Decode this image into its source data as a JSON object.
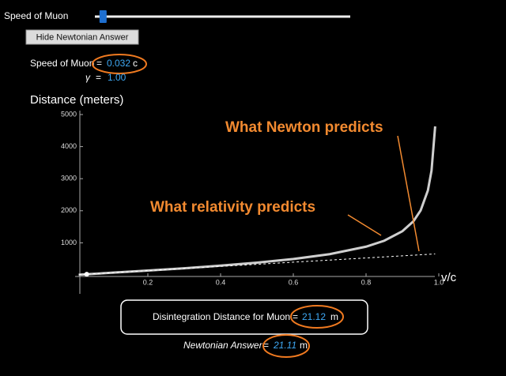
{
  "controls": {
    "slider_label": "Speed of Muon",
    "button": "Hide Newtonian Answer"
  },
  "speed_readout": {
    "label": "Speed of Muon",
    "equals": "=",
    "value": 0.032,
    "unit": "c"
  },
  "gamma_readout": {
    "symbol": "γ",
    "equals": "=",
    "value": {
      "value": 1,
      "label": "1.00"
    }
  },
  "relativistic_answer": {
    "label": "Disintegration Distance for Muon",
    "equals": "=",
    "value": 21.12,
    "unit": "m"
  },
  "newtonian_answer": {
    "label": "Newtonian Answer",
    "equals": "=",
    "value": 21.11,
    "unit": "m"
  },
  "chart_data": {
    "type": "line",
    "y_label": "Distance (meters)",
    "x_label": "v/c",
    "annotations": [
      "What Newton predicts",
      "What relativity predicts"
    ],
    "x": [
      0.01,
      0.1,
      0.2,
      0.3,
      0.4,
      0.5,
      0.6,
      0.7,
      0.8,
      0.85,
      0.9,
      0.93,
      0.95,
      0.97,
      0.98,
      0.99
    ],
    "series": [
      {
        "name": "What relativity predicts",
        "color": "#cfcfcf",
        "style": "solid",
        "values": [
          6.6,
          66.3,
          134.7,
          207.6,
          288,
          381.1,
          495,
          646.9,
          880,
          1065,
          1362.8,
          1669.9,
          2008,
          2633.5,
          3250.3,
          4631.8
        ]
      },
      {
        "name": "What Newton predicts",
        "color": "#ffffff",
        "style": "dashed",
        "values": [
          6.6,
          66,
          132,
          198,
          264,
          330,
          396,
          462,
          528,
          561,
          594,
          613.8,
          627,
          640.2,
          646.8,
          653.4
        ]
      }
    ],
    "xlim": [
      0,
      1
    ],
    "ylim": [
      0,
      5000
    ],
    "xticks": [
      0.2,
      0.4,
      0.6,
      0.8,
      {
        "value": 1,
        "label": "1.0"
      }
    ],
    "yticks": [
      1000,
      2000,
      3000,
      4000,
      5000
    ],
    "grid": false
  }
}
